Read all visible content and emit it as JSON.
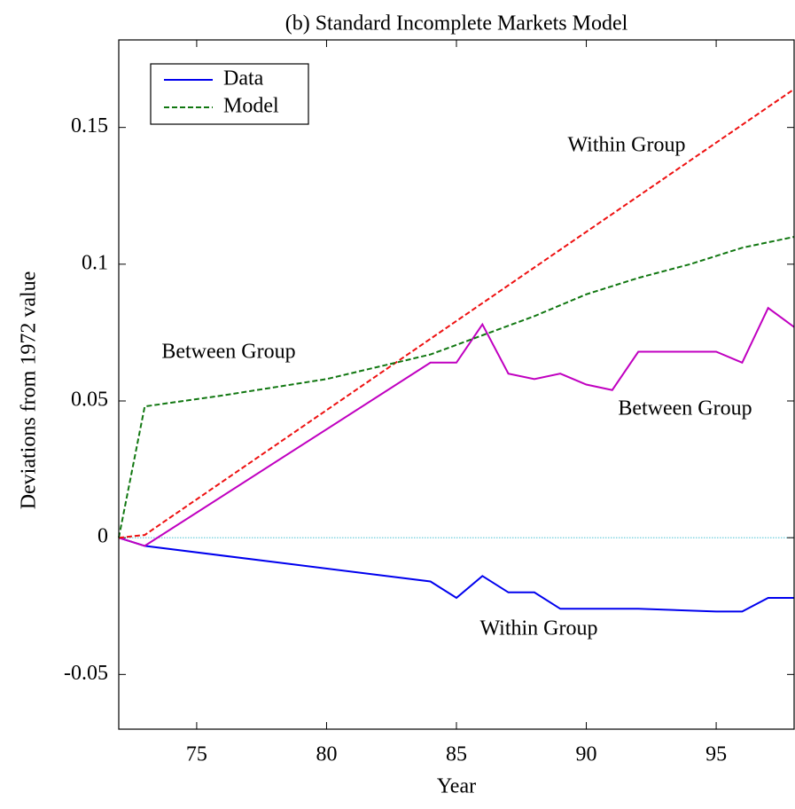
{
  "chart_data": {
    "type": "line",
    "title": "(b) Standard Incomplete Markets Model",
    "xlabel": "Year",
    "ylabel": "Deviations from 1972 value",
    "xlim": [
      72,
      98
    ],
    "xticks": [
      75,
      80,
      85,
      90,
      95
    ],
    "ylim": [
      -0.07,
      0.182
    ],
    "yticks": [
      0.15,
      0.1,
      0.05,
      0,
      -0.05
    ],
    "hline": 0,
    "hline_color": "#5fc8d8",
    "legend": [
      {
        "name": "Data",
        "color": "#0000ee",
        "dashed": false
      },
      {
        "name": "Model",
        "color": "#117711",
        "dashed": true
      }
    ],
    "legend_position": "upper left",
    "series": [
      {
        "name": "Within Group",
        "color": "#0000ee",
        "dashed": false,
        "x": [
          72,
          73,
          84,
          85,
          86,
          87,
          88,
          89,
          90,
          91,
          92,
          95,
          96,
          97,
          98
        ],
        "values": [
          0,
          -0.003,
          -0.016,
          -0.022,
          -0.014,
          -0.02,
          -0.02,
          -0.026,
          -0.026,
          -0.026,
          -0.026,
          -0.027,
          -0.027,
          -0.022,
          -0.022
        ]
      },
      {
        "name": "Between Group",
        "color": "#c000c0",
        "dashed": false,
        "x": [
          72,
          73,
          84,
          85,
          86,
          87,
          88,
          89,
          90,
          91,
          92,
          95,
          96,
          97,
          98
        ],
        "values": [
          0,
          -0.003,
          0.064,
          0.064,
          0.078,
          0.06,
          0.058,
          0.06,
          0.056,
          0.054,
          0.068,
          0.068,
          0.064,
          0.084,
          0.077
        ]
      },
      {
        "name": "Within Group",
        "color": "#ee1111",
        "dashed": true,
        "x": [
          72,
          73,
          98
        ],
        "values": [
          0,
          0.001,
          0.164
        ]
      },
      {
        "name": "Between Group",
        "color": "#117711",
        "dashed": true,
        "x": [
          72,
          73,
          76,
          80,
          84,
          86,
          88,
          90,
          92,
          94,
          96,
          98
        ],
        "values": [
          0,
          0.048,
          0.052,
          0.058,
          0.067,
          0.074,
          0.081,
          0.089,
          0.095,
          0.1,
          0.106,
          0.11
        ]
      }
    ]
  }
}
